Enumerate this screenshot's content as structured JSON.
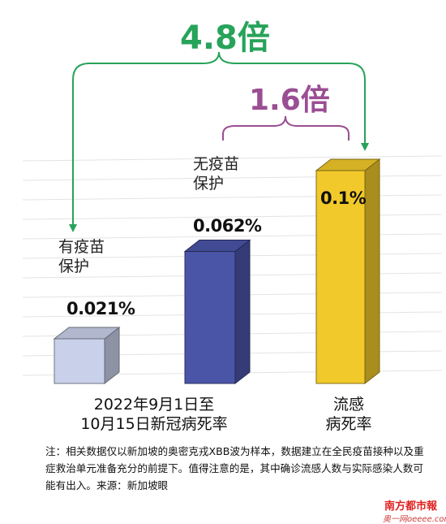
{
  "chart_data": {
    "type": "bar",
    "categories": [
      "有疫苗保护",
      "无疫苗保护",
      "流感"
    ],
    "values": [
      0.021,
      0.062,
      0.1
    ],
    "value_labels": [
      "0.021%",
      "0.062%",
      "0.1%"
    ],
    "category_labels": [
      [
        "有疫苗",
        "保护"
      ],
      [
        "无疫苗",
        "保护"
      ],
      []
    ],
    "bar_colors": [
      "#c9d1ea",
      "#4a55a8",
      "#f2c92a"
    ],
    "comparisons": [
      {
        "label": "4.8倍",
        "color": "#27a35a"
      },
      {
        "label": "1.6倍",
        "color": "#9a4e93"
      }
    ],
    "axis_groups": [
      {
        "lines": [
          "2022年9月1日至",
          "10月15日新冠病死率"
        ]
      },
      {
        "lines": [
          "流感",
          "病死率"
        ]
      }
    ],
    "grid": true,
    "legend": "none"
  },
  "note": "注：相关数据仅以新加坡的奥密克戎XBB波为样本，数据建立在全民疫苗接种以及重症救治单元准备充分的前提下。值得注意的是，其中确诊流感人数与实际感染人数可能有出入。来源：新加坡眼",
  "source_logo": "南方都市報",
  "source_sub": "奥一网oeeee.com"
}
